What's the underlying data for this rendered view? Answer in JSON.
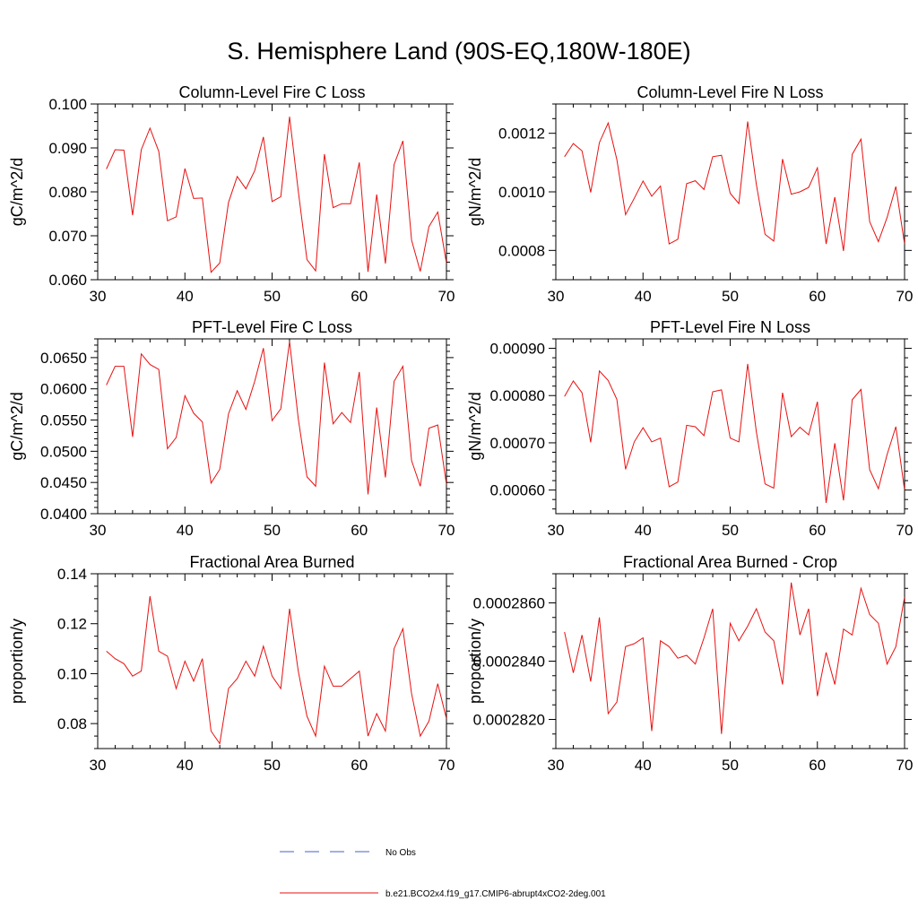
{
  "figure": {
    "title": "S. Hemisphere Land (90S-EQ,180W-180E)",
    "legend": [
      {
        "label": "No Obs",
        "color": "#4a5fcf",
        "dashed": true
      },
      {
        "label": "b.e21.BCO2x4.f19_g17.CMIP6-abrupt4xCO2-2deg.001",
        "color": "#e81010",
        "dashed": false
      }
    ]
  },
  "chart_data": [
    {
      "type": "line",
      "title": "Column-Level Fire C Loss",
      "ylabel": "gC/m^2/d",
      "xlim": [
        30,
        70
      ],
      "ylim": [
        0.06,
        0.1
      ],
      "xticks": [
        30,
        40,
        50,
        60,
        70
      ],
      "xtick_labels": [
        "30",
        "40",
        "50",
        "60",
        "70"
      ],
      "yticks": [
        0.06,
        0.07,
        0.08,
        0.09,
        0.1
      ],
      "ytick_labels": [
        "0.060",
        "0.070",
        "0.080",
        "0.090",
        "0.100"
      ],
      "yminor": 5,
      "series": [
        {
          "name": "b.e21.BCO2x4.f19_g17.CMIP6-abrupt4xCO2-2deg.001",
          "color": "#e81010",
          "x": [
            31,
            32,
            33,
            34,
            35,
            36,
            37,
            38,
            39,
            40,
            41,
            42,
            43,
            44,
            45,
            46,
            47,
            48,
            49,
            50,
            51,
            52,
            53,
            54,
            55,
            56,
            57,
            58,
            59,
            60,
            61,
            62,
            63,
            64,
            65,
            66,
            67,
            68,
            69,
            70
          ],
          "y": [
            0.0852,
            0.0896,
            0.0895,
            0.0747,
            0.0896,
            0.0945,
            0.0892,
            0.0734,
            0.0743,
            0.0853,
            0.0785,
            0.0786,
            0.0617,
            0.0638,
            0.0776,
            0.0835,
            0.0807,
            0.0848,
            0.0925,
            0.0778,
            0.0789,
            0.0971,
            0.0802,
            0.0646,
            0.062,
            0.0886,
            0.0764,
            0.0773,
            0.0773,
            0.0867,
            0.0618,
            0.0794,
            0.0637,
            0.0862,
            0.0916,
            0.069,
            0.0619,
            0.0721,
            0.0754,
            0.0638
          ]
        }
      ]
    },
    {
      "type": "line",
      "title": "Column-Level Fire N Loss",
      "ylabel": "gN/m^2/d",
      "xlim": [
        30,
        70
      ],
      "ylim": [
        0.0007,
        0.0013
      ],
      "xticks": [
        30,
        40,
        50,
        60,
        70
      ],
      "xtick_labels": [
        "30",
        "40",
        "50",
        "60",
        "70"
      ],
      "yticks": [
        0.0008,
        0.001,
        0.0012
      ],
      "ytick_labels": [
        "0.0008",
        "0.0010",
        "0.0012"
      ],
      "yminor": 4,
      "series": [
        {
          "name": "b.e21.BCO2x4.f19_g17.CMIP6-abrupt4xCO2-2deg.001",
          "color": "#e81010",
          "x": [
            31,
            32,
            33,
            34,
            35,
            36,
            37,
            38,
            39,
            40,
            41,
            42,
            43,
            44,
            45,
            46,
            47,
            48,
            49,
            50,
            51,
            52,
            53,
            54,
            55,
            56,
            57,
            58,
            59,
            60,
            61,
            62,
            63,
            64,
            65,
            66,
            67,
            68,
            69,
            70
          ],
          "y": [
            0.00112,
            0.001165,
            0.00114,
            0.000998,
            0.001168,
            0.001235,
            0.00111,
            0.000922,
            0.000978,
            0.001037,
            0.000985,
            0.00102,
            0.000822,
            0.000838,
            0.001028,
            0.001038,
            0.001008,
            0.00112,
            0.001125,
            0.000995,
            0.00096,
            0.00124,
            0.001025,
            0.000855,
            0.000832,
            0.001112,
            0.000992,
            0.001,
            0.001015,
            0.001082,
            0.000822,
            0.000982,
            0.000798,
            0.001128,
            0.00118,
            0.000898,
            0.00083,
            0.000912,
            0.001018,
            0.000822
          ]
        }
      ]
    },
    {
      "type": "line",
      "title": "PFT-Level Fire C Loss",
      "ylabel": "gC/m^2/d",
      "xlim": [
        30,
        70
      ],
      "ylim": [
        0.04,
        0.068
      ],
      "xticks": [
        30,
        40,
        50,
        60,
        70
      ],
      "xtick_labels": [
        "30",
        "40",
        "50",
        "60",
        "70"
      ],
      "yticks": [
        0.04,
        0.045,
        0.05,
        0.055,
        0.06,
        0.065
      ],
      "ytick_labels": [
        "0.0400",
        "0.0450",
        "0.0500",
        "0.0550",
        "0.0600",
        "0.0650"
      ],
      "yminor": 5,
      "series": [
        {
          "name": "b.e21.BCO2x4.f19_g17.CMIP6-abrupt4xCO2-2deg.001",
          "color": "#e81010",
          "x": [
            31,
            32,
            33,
            34,
            35,
            36,
            37,
            38,
            39,
            40,
            41,
            42,
            43,
            44,
            45,
            46,
            47,
            48,
            49,
            50,
            51,
            52,
            53,
            54,
            55,
            56,
            57,
            58,
            59,
            60,
            61,
            62,
            63,
            64,
            65,
            66,
            67,
            68,
            69,
            70
          ],
          "y": [
            0.0606,
            0.0636,
            0.0636,
            0.0523,
            0.0656,
            0.0639,
            0.0631,
            0.0504,
            0.0522,
            0.0589,
            0.0561,
            0.0547,
            0.0449,
            0.0471,
            0.056,
            0.0597,
            0.0567,
            0.0612,
            0.0665,
            0.0549,
            0.0568,
            0.0676,
            0.0552,
            0.0459,
            0.0444,
            0.0642,
            0.0544,
            0.0562,
            0.0546,
            0.0627,
            0.0431,
            0.057,
            0.0458,
            0.0612,
            0.0636,
            0.0485,
            0.0444,
            0.0537,
            0.0542,
            0.0447
          ]
        }
      ]
    },
    {
      "type": "line",
      "title": "PFT-Level Fire N Loss",
      "ylabel": "gN/m^2/d",
      "xlim": [
        30,
        70
      ],
      "ylim": [
        0.00055,
        0.00092
      ],
      "xticks": [
        30,
        40,
        50,
        60,
        70
      ],
      "xtick_labels": [
        "30",
        "40",
        "50",
        "60",
        "70"
      ],
      "yticks": [
        0.0006,
        0.0007,
        0.0008,
        0.0009
      ],
      "ytick_labels": [
        "0.00060",
        "0.00070",
        "0.00080",
        "0.00090"
      ],
      "yminor": 5,
      "series": [
        {
          "name": "b.e21.BCO2x4.f19_g17.CMIP6-abrupt4xCO2-2deg.001",
          "color": "#e81010",
          "x": [
            31,
            32,
            33,
            34,
            35,
            36,
            37,
            38,
            39,
            40,
            41,
            42,
            43,
            44,
            45,
            46,
            47,
            48,
            49,
            50,
            51,
            52,
            53,
            54,
            55,
            56,
            57,
            58,
            59,
            60,
            61,
            62,
            63,
            64,
            65,
            66,
            67,
            68,
            69,
            70
          ],
          "y": [
            0.000798,
            0.000831,
            0.000806,
            0.000701,
            0.000852,
            0.000832,
            0.000792,
            0.000644,
            0.000702,
            0.000732,
            0.000702,
            0.00071,
            0.000607,
            0.000617,
            0.000737,
            0.000734,
            0.000715,
            0.000808,
            0.000812,
            0.00071,
            0.000702,
            0.000867,
            0.000723,
            0.000613,
            0.000604,
            0.000806,
            0.000713,
            0.000733,
            0.000717,
            0.000787,
            0.000573,
            0.000699,
            0.000578,
            0.000791,
            0.000813,
            0.000643,
            0.000603,
            0.000675,
            0.000734,
            0.0006
          ]
        }
      ]
    },
    {
      "type": "line",
      "title": "Fractional Area Burned",
      "ylabel": "proportion/y",
      "xlim": [
        30,
        70
      ],
      "ylim": [
        0.07,
        0.14
      ],
      "xticks": [
        30,
        40,
        50,
        60,
        70
      ],
      "xtick_labels": [
        "30",
        "40",
        "50",
        "60",
        "70"
      ],
      "yticks": [
        0.08,
        0.1,
        0.12,
        0.14
      ],
      "ytick_labels": [
        "0.08",
        "0.10",
        "0.12",
        "0.14"
      ],
      "yminor": 4,
      "series": [
        {
          "name": "b.e21.BCO2x4.f19_g17.CMIP6-abrupt4xCO2-2deg.001",
          "color": "#e81010",
          "x": [
            31,
            32,
            33,
            34,
            35,
            36,
            37,
            38,
            39,
            40,
            41,
            42,
            43,
            44,
            45,
            46,
            47,
            48,
            49,
            50,
            51,
            52,
            53,
            54,
            55,
            56,
            57,
            58,
            59,
            60,
            61,
            62,
            63,
            64,
            65,
            66,
            67,
            68,
            69,
            70
          ],
          "y": [
            0.109,
            0.106,
            0.104,
            0.099,
            0.101,
            0.131,
            0.109,
            0.107,
            0.094,
            0.105,
            0.097,
            0.106,
            0.077,
            0.072,
            0.094,
            0.098,
            0.105,
            0.099,
            0.111,
            0.099,
            0.094,
            0.126,
            0.101,
            0.083,
            0.075,
            0.103,
            0.095,
            0.095,
            0.098,
            0.101,
            0.075,
            0.084,
            0.077,
            0.11,
            0.118,
            0.092,
            0.075,
            0.081,
            0.096,
            0.082
          ]
        }
      ]
    },
    {
      "type": "line",
      "title": "Fractional Area Burned - Crop",
      "ylabel": "proportion/y",
      "xlim": [
        30,
        70
      ],
      "ylim": [
        0.000281,
        0.000287
      ],
      "xticks": [
        30,
        40,
        50,
        60,
        70
      ],
      "xtick_labels": [
        "30",
        "40",
        "50",
        "60",
        "70"
      ],
      "yticks": [
        0.000282,
        0.000284,
        0.000286
      ],
      "ytick_labels": [
        "0.0002820",
        "0.0002840",
        "0.0002860"
      ],
      "yminor": 4,
      "series": [
        {
          "name": "b.e21.BCO2x4.f19_g17.CMIP6-abrupt4xCO2-2deg.001",
          "color": "#e81010",
          "x": [
            31,
            32,
            33,
            34,
            35,
            36,
            37,
            38,
            39,
            40,
            41,
            42,
            43,
            44,
            45,
            46,
            47,
            48,
            49,
            50,
            51,
            52,
            53,
            54,
            55,
            56,
            57,
            58,
            59,
            60,
            61,
            62,
            63,
            64,
            65,
            66,
            67,
            68,
            69,
            70
          ],
          "y": [
            0.000285,
            0.0002836,
            0.0002849,
            0.0002833,
            0.0002855,
            0.0002822,
            0.0002826,
            0.0002845,
            0.0002846,
            0.0002848,
            0.0002816,
            0.0002847,
            0.0002845,
            0.0002841,
            0.0002842,
            0.0002839,
            0.0002848,
            0.0002858,
            0.0002815,
            0.0002853,
            0.0002847,
            0.0002852,
            0.0002858,
            0.000285,
            0.0002847,
            0.0002832,
            0.0002867,
            0.0002849,
            0.0002858,
            0.0002828,
            0.0002843,
            0.0002832,
            0.0002851,
            0.0002849,
            0.0002865,
            0.0002856,
            0.0002853,
            0.0002839,
            0.0002845,
            0.0002862
          ]
        }
      ]
    }
  ]
}
